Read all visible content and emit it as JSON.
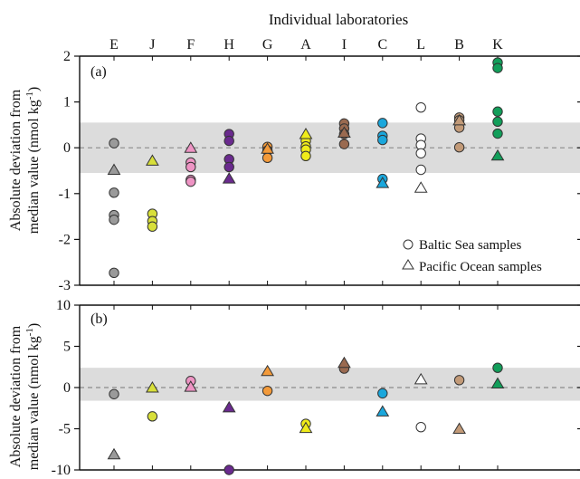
{
  "chart_data": {
    "type": "scatter",
    "title": "Individual laboratories",
    "categories": [
      "E",
      "J",
      "F",
      "H",
      "G",
      "A",
      "I",
      "C",
      "L",
      "B",
      "K"
    ],
    "colors": {
      "E": "#9a9a9a",
      "J": "#d8df3a",
      "F": "#ee94c4",
      "H": "#6a2a8e",
      "G": "#f39a3a",
      "A": "#f0ec1a",
      "I": "#9a6a50",
      "C": "#1aa7dc",
      "L": "#ffffff",
      "B": "#c29a78",
      "K": "#129e5a"
    },
    "legend": {
      "position": "bottom-right of panel (a)",
      "items": [
        {
          "marker": "circle",
          "label": "Baltic Sea samples"
        },
        {
          "marker": "triangle",
          "label": "Pacific Ocean samples"
        }
      ]
    },
    "panels": [
      {
        "label": "(a)",
        "ylabel": "Absolute deviation from median value (nmol kg-1)",
        "ylabel_line1": "Absolute deviation from",
        "ylabel_line2": "median value (nmol kg",
        "ylabel_sup": "-1",
        "ylabel_end": ")",
        "ylim": [
          -3,
          2
        ],
        "yticks": [
          "2",
          "1",
          "0",
          "-1",
          "-2",
          "-3"
        ],
        "band": [
          -0.55,
          0.55
        ],
        "median_line": 0,
        "baltic": {
          "E": [
            0.1,
            -0.98,
            -1.47,
            -1.57,
            -2.73
          ],
          "J": [
            -1.44,
            -1.6,
            -1.72
          ],
          "F": [
            -0.32,
            -0.42,
            -0.7,
            -0.74
          ],
          "H": [
            0.3,
            0.15,
            -0.25,
            -0.42
          ],
          "G": [
            0.02,
            -0.06,
            -0.22
          ],
          "A": [
            0.15,
            0.03,
            -0.04,
            -0.18
          ],
          "I": [
            0.53,
            0.42,
            0.3,
            0.08
          ],
          "C": [
            0.54,
            0.26,
            0.17,
            -0.68
          ],
          "L": [
            0.88,
            0.2,
            0.06,
            -0.12,
            -0.48
          ],
          "B": [
            0.66,
            0.6,
            0.44,
            0.01
          ],
          "K": [
            1.86,
            1.74,
            0.79,
            0.57,
            0.31
          ]
        },
        "pacific": {
          "E": [
            -0.48
          ],
          "J": [
            -0.28
          ],
          "F": [
            0.0
          ],
          "H": [
            -0.67
          ],
          "G": [
            -0.02
          ],
          "A": [
            0.3
          ],
          "I": [
            0.33
          ],
          "C": [
            -0.77
          ],
          "L": [
            -0.87
          ],
          "B": [
            0.6
          ],
          "K": [
            -0.17
          ]
        }
      },
      {
        "label": "(b)",
        "ylabel": "Absolute deviation from median value (nmol kg-1)",
        "ylabel_line1": "Absolute deviation from",
        "ylabel_line2": "median value (nmol kg",
        "ylabel_sup": "-1",
        "ylabel_end": ")",
        "ylim": [
          -10,
          10
        ],
        "yticks": [
          "10",
          "5",
          "0",
          "-5",
          "-10"
        ],
        "band": [
          -1.6,
          2.4
        ],
        "median_line": 0,
        "baltic": {
          "E": [
            -0.8
          ],
          "J": [
            -3.5
          ],
          "F": [
            0.8
          ],
          "H": [
            -10.0
          ],
          "G": [
            -0.4
          ],
          "A": [
            -4.4
          ],
          "I": [
            2.3
          ],
          "C": [
            -0.7
          ],
          "L": [
            -4.8
          ],
          "B": [
            0.9
          ],
          "K": [
            2.4
          ]
        },
        "pacific": {
          "E": [
            -8.1
          ],
          "J": [
            0.0
          ],
          "F": [
            0.1
          ],
          "H": [
            -2.4
          ],
          "G": [
            2.0
          ],
          "A": [
            -4.9
          ],
          "I": [
            3.0
          ],
          "C": [
            -2.9
          ],
          "L": [
            1.0
          ],
          "B": [
            -5.0
          ],
          "K": [
            0.5
          ]
        }
      }
    ]
  }
}
